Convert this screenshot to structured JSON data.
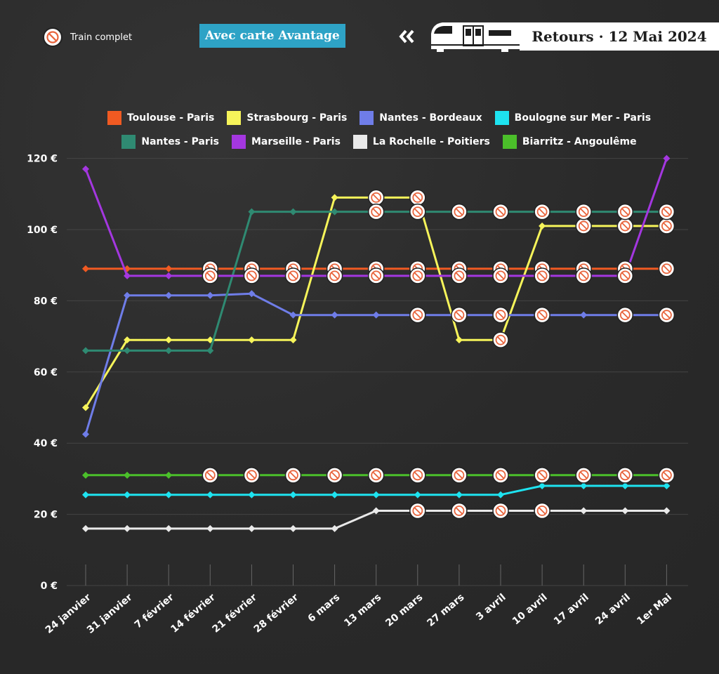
{
  "header": {
    "full_label": "Train complet",
    "stamp": "Avec carte Avantage",
    "title": "Retours · 12 Mai 2024"
  },
  "icons": {
    "full": "no-entry-icon",
    "back": "double-chevron-left-icon",
    "train": "train-icon"
  },
  "colors": {
    "background": "#2d2d2d",
    "stamp": "#2ea3c6",
    "grid": "#444444",
    "full_marker": "#e8643c"
  },
  "chart_data": {
    "type": "line",
    "title": "",
    "xlabel": "",
    "ylabel": "",
    "grid": true,
    "legend_position": "top",
    "ylim": [
      0,
      120
    ],
    "yticks": [
      "0 €",
      "20 €",
      "40 €",
      "60 €",
      "80 €",
      "100 €",
      "120 €"
    ],
    "categories": [
      "24 janvier",
      "31 janvier",
      "7 février",
      "14 février",
      "21 février",
      "28 février",
      "6 mars",
      "13 mars",
      "20 mars",
      "27 mars",
      "3 avril",
      "10 avril",
      "17 avril",
      "24 avril",
      "1er Mai"
    ],
    "series": [
      {
        "name": "Toulouse - Paris",
        "color": "#f05a22",
        "values": [
          89,
          89,
          89,
          89,
          89,
          89,
          89,
          89,
          89,
          89,
          89,
          89,
          89,
          89,
          89
        ],
        "full": [
          false,
          false,
          false,
          true,
          true,
          true,
          true,
          true,
          true,
          true,
          true,
          true,
          true,
          true,
          true
        ]
      },
      {
        "name": "Strasbourg - Paris",
        "color": "#f6f45a",
        "values": [
          50,
          69,
          69,
          69,
          69,
          69,
          109,
          109,
          109,
          69,
          69,
          101,
          101,
          101,
          101
        ],
        "full": [
          false,
          false,
          false,
          false,
          false,
          false,
          false,
          true,
          true,
          false,
          true,
          false,
          true,
          true,
          true
        ]
      },
      {
        "name": "Nantes - Bordeaux",
        "color": "#6f7de8",
        "values": [
          42.5,
          81.5,
          81.5,
          81.5,
          82,
          76,
          76,
          76,
          76,
          76,
          76,
          76,
          76,
          76,
          76
        ],
        "full": [
          false,
          false,
          false,
          false,
          false,
          false,
          false,
          false,
          true,
          true,
          true,
          true,
          false,
          true,
          true
        ]
      },
      {
        "name": "Boulogne sur Mer - Paris",
        "color": "#1ee3f0",
        "values": [
          25.5,
          25.5,
          25.5,
          25.5,
          25.5,
          25.5,
          25.5,
          25.5,
          25.5,
          25.5,
          25.5,
          28,
          28,
          28,
          28
        ],
        "full": [
          false,
          false,
          false,
          false,
          false,
          false,
          false,
          false,
          false,
          false,
          false,
          false,
          false,
          false,
          false
        ]
      },
      {
        "name": "Nantes - Paris",
        "color": "#2f8a72",
        "values": [
          66,
          66,
          66,
          66,
          105,
          105,
          105,
          105,
          105,
          105,
          105,
          105,
          105,
          105,
          105
        ],
        "full": [
          false,
          false,
          false,
          false,
          false,
          false,
          false,
          true,
          true,
          true,
          true,
          true,
          true,
          true,
          true
        ]
      },
      {
        "name": "Marseille - Paris",
        "color": "#a437e0",
        "values": [
          117,
          87,
          87,
          87,
          87,
          87,
          87,
          87,
          87,
          87,
          87,
          87,
          87,
          87,
          120
        ],
        "full": [
          false,
          false,
          false,
          true,
          true,
          true,
          true,
          true,
          true,
          true,
          true,
          true,
          true,
          true,
          false
        ]
      },
      {
        "name": "La Rochelle - Poitiers",
        "color": "#e9e9e9",
        "values": [
          16,
          16,
          16,
          16,
          16,
          16,
          16,
          21,
          21,
          21,
          21,
          21,
          21,
          21,
          21
        ],
        "full": [
          false,
          false,
          false,
          false,
          false,
          false,
          false,
          false,
          true,
          true,
          true,
          true,
          false,
          false,
          false
        ]
      },
      {
        "name": "Biarritz - Angoulême",
        "color": "#4bbf2a",
        "values": [
          31,
          31,
          31,
          31,
          31,
          31,
          31,
          31,
          31,
          31,
          31,
          31,
          31,
          31,
          31
        ],
        "full": [
          false,
          false,
          false,
          true,
          true,
          true,
          true,
          true,
          true,
          true,
          true,
          true,
          true,
          true,
          true
        ]
      }
    ]
  }
}
